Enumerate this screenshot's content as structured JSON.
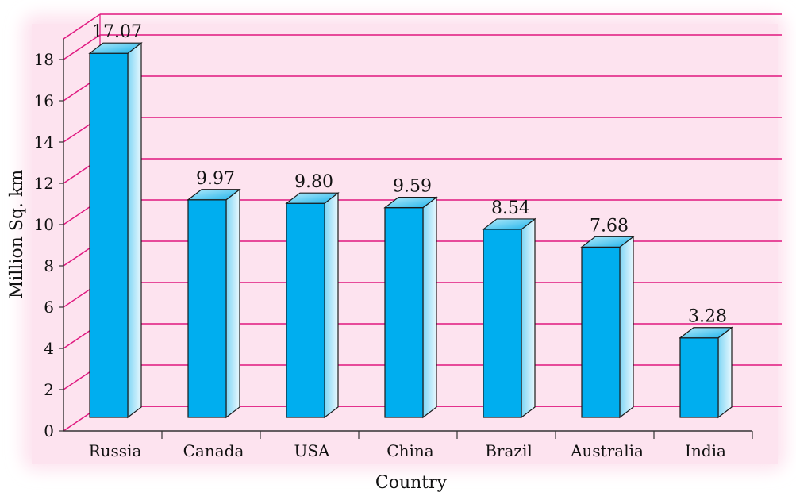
{
  "chart_data": {
    "type": "bar",
    "categories": [
      "Russia",
      "Canada",
      "USA",
      "China",
      "Brazil",
      "Australia",
      "India"
    ],
    "values": [
      17.07,
      9.97,
      9.8,
      9.59,
      8.54,
      7.68,
      3.28
    ],
    "value_labels": [
      "17.07",
      "9.97",
      "9.80",
      "9.59",
      "8.54",
      "7.68",
      "3.28"
    ],
    "xlabel": "Country",
    "ylabel": "Million Sq. km",
    "ylim": [
      0,
      18
    ],
    "yticks": [
      "0",
      "2",
      "4",
      "6",
      "8",
      "10",
      "12",
      "14",
      "16",
      "18"
    ],
    "grid": true,
    "bar_color": "#00aeef",
    "bar_side_color": "#bfe9f8",
    "bar_top_color": "#29c0f2",
    "grid_color": "#e0177f",
    "background_color": "#fde3ef"
  }
}
